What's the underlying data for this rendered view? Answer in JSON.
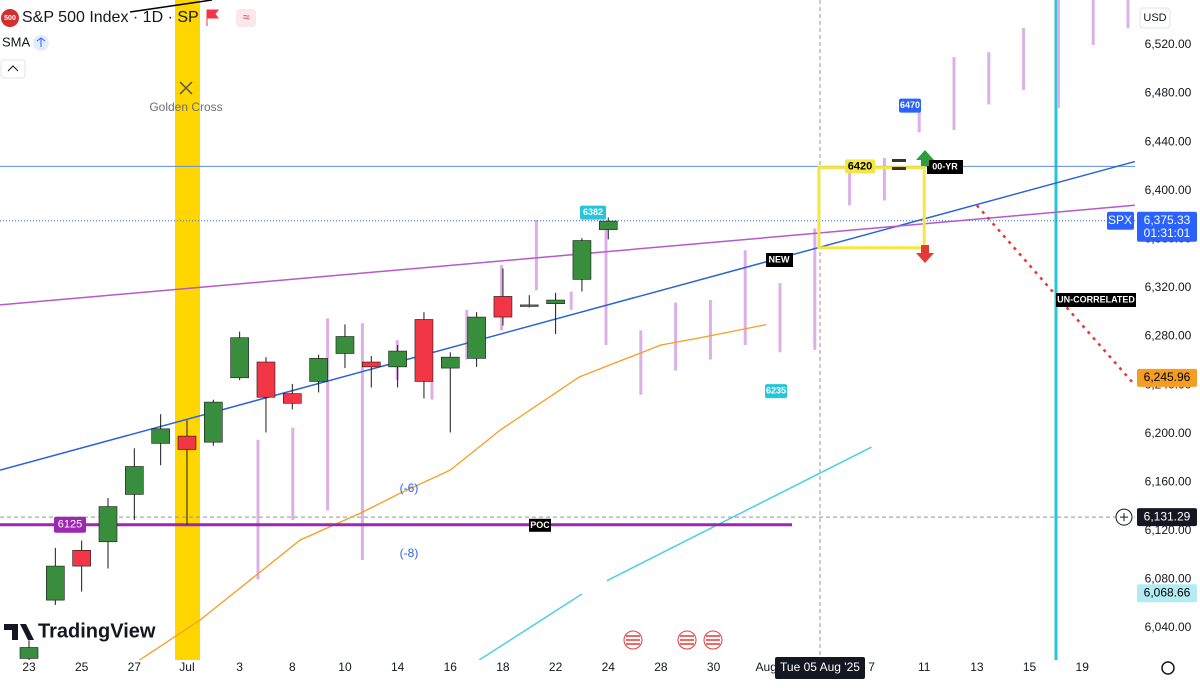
{
  "header": {
    "logo": "500",
    "title": "S&P 500 Index · 1D · SP",
    "indicator": "SMA",
    "currency": "USD",
    "brand": "TradingView"
  },
  "chart_data": {
    "type": "candlestick",
    "grid": false,
    "categories": [
      "23",
      null,
      "25",
      null,
      "27",
      null,
      "Jul",
      null,
      "3",
      null,
      "8",
      null,
      "10",
      null,
      "14",
      null,
      "16",
      null,
      "18",
      null,
      "22",
      null,
      "24",
      null,
      "28",
      null,
      "30",
      null,
      "Aug",
      null,
      null,
      null,
      "7",
      null,
      "11",
      null,
      "13",
      null,
      "15",
      null,
      "19",
      null,
      null
    ],
    "open": [
      6015,
      6063,
      6104,
      6111,
      6150,
      6192,
      6198,
      6193,
      6246,
      6259,
      6233,
      6243,
      6266,
      6259,
      6255,
      6294,
      6254,
      6262,
      6313,
      6305,
      6307,
      6327,
      6368,
      null,
      null,
      null,
      null,
      null,
      null,
      null,
      null,
      null,
      null,
      null,
      null,
      null,
      null,
      null,
      null,
      null,
      null,
      null,
      null
    ],
    "high": [
      6030,
      6106,
      6112,
      6147,
      6188,
      6216,
      6211,
      6228,
      6284,
      6263,
      6241,
      6265,
      6290,
      6264,
      6273,
      6300,
      6267,
      6300,
      6336,
      6314,
      6316,
      6361,
      6378,
      null,
      null,
      null,
      null,
      null,
      null,
      null,
      null,
      null,
      null,
      null,
      null,
      null,
      null,
      null,
      null,
      null,
      null,
      null,
      null
    ],
    "low": [
      6005,
      6059,
      6070,
      6089,
      6129,
      6174,
      6125,
      6190,
      6244,
      6201,
      6220,
      6234,
      6254,
      6238,
      6238,
      6229,
      6201,
      6255,
      6289,
      6304,
      6282,
      6317,
      6360,
      null,
      null,
      null,
      null,
      null,
      null,
      null,
      null,
      null,
      null,
      null,
      null,
      null,
      null,
      null,
      null,
      null,
      null,
      null,
      null
    ],
    "close": [
      6024,
      6091,
      6091,
      6140,
      6173,
      6204,
      6187,
      6226,
      6279,
      6230,
      6225,
      6262,
      6280,
      6255,
      6268,
      6243,
      6263,
      6296,
      6296,
      6306,
      6310,
      6359,
      6375,
      null,
      null,
      null,
      null,
      null,
      null,
      null,
      null,
      null,
      null,
      null,
      null,
      null,
      null,
      null,
      null,
      null,
      null,
      null,
      null
    ],
    "up_color": "#388e3c",
    "down_color": "#f23645",
    "ylim": [
      6013.7,
      6557
    ],
    "yticks": [
      {
        "value": 6040,
        "label": "6,040.00"
      },
      {
        "value": 6080,
        "label": "6,080.00"
      },
      {
        "value": 6120,
        "label": "6,120.00"
      },
      {
        "value": 6160,
        "label": "6,160.00"
      },
      {
        "value": 6200,
        "label": "6,200.00"
      },
      {
        "value": 6240,
        "label": "6,240.00"
      },
      {
        "value": 6280,
        "label": "6,280.00"
      },
      {
        "value": 6320,
        "label": "6,320.00"
      },
      {
        "value": 6360,
        "label": "6,360.00"
      },
      {
        "value": 6400,
        "label": "6,400.00"
      },
      {
        "value": 6440,
        "label": "6,440.00"
      },
      {
        "value": 6480,
        "label": "6,480.00"
      },
      {
        "value": 6520,
        "label": "6,520.00"
      }
    ],
    "pattern_bars": {
      "color": "#dcb0e6",
      "high": [
        6195,
        6205,
        6295,
        6291,
        6277,
        6244,
        6302,
        6339,
        6376,
        6317,
        6368,
        6285,
        6308,
        6310,
        6351,
        6324,
        6369,
        6417,
        6427,
        6466,
        6510,
        6514,
        6534,
        6557,
        6557,
        6557
      ],
      "low": [
        6080,
        6129,
        6137,
        6096,
        6244,
        6228,
        6261,
        6285,
        6318,
        6302,
        6273,
        6232,
        6252,
        6261,
        6273,
        6267,
        6269,
        6388,
        6392,
        6448,
        6450,
        6471,
        6483,
        6468,
        6520,
        6534
      ]
    },
    "resistance_line": {
      "value": 6420,
      "color": "#5b8fd9"
    },
    "last_price": {
      "symbol": "SPX",
      "value": 6375.33,
      "label": "6,375.33",
      "countdown": "01:31:01",
      "color": "#2962ff"
    },
    "poc": {
      "value": 6125,
      "label": "POC",
      "color": "#9c27b0"
    },
    "crosshair": {
      "value": 6131.29,
      "label": "6,131.29",
      "date": "Tue 05 Aug '25"
    },
    "sma": {
      "color": "#f59d22",
      "x": [
        4.2,
        6.5,
        10.3,
        12.6,
        14.1,
        16,
        17.9,
        20.9,
        24,
        25.5,
        28
      ],
      "values": [
        6013.7,
        6046.6,
        6112.5,
        6134.7,
        6151,
        6170,
        6203,
        6246.7,
        6273,
        6279,
        6289.8
      ],
      "last": {
        "value": 6245.96,
        "label": "6,245.96"
      }
    },
    "cyan_level": {
      "value": 6068.66,
      "label": "6,068.66"
    },
    "drawings": [
      {
        "color": "#2d63d6",
        "style": "solid",
        "x": [
          -1.1,
          42
        ],
        "values": [
          6170,
          6424
        ]
      },
      {
        "color": "#b55bc8",
        "style": "solid",
        "x": [
          -1.1,
          42
        ],
        "values": [
          6306,
          6388
        ]
      },
      {
        "color": "#4dd0e1",
        "style": "solid",
        "x": [
          17.1,
          21
        ],
        "values": [
          6013.7,
          6068
        ]
      },
      {
        "color": "#4dd0e1",
        "style": "solid",
        "x": [
          21.95,
          32
        ],
        "values": [
          6079,
          6189
        ]
      },
      {
        "color": "#e53935",
        "style": "dotted",
        "x": [
          36,
          42
        ],
        "values": [
          6388,
          6240
        ]
      }
    ],
    "box": {
      "x": [
        30,
        34
      ],
      "values": [
        6419,
        6353
      ],
      "color": "#f5e642"
    },
    "markers": [
      {
        "value": 6420,
        "color": "#f5e642"
      },
      {
        "value": 6470,
        "color": "#2962ff"
      },
      {
        "value": 6382,
        "color": "#26c6da"
      },
      {
        "value": 6235,
        "color": "#26c6da"
      }
    ],
    "annotations": {
      "golden_cross": "Golden Cross",
      "new": "NEW",
      "uncorrelated": "UN-CORRELATED",
      "yr": "00-YR",
      "minus6": "(-6)",
      "minus8": "(-8)"
    }
  }
}
